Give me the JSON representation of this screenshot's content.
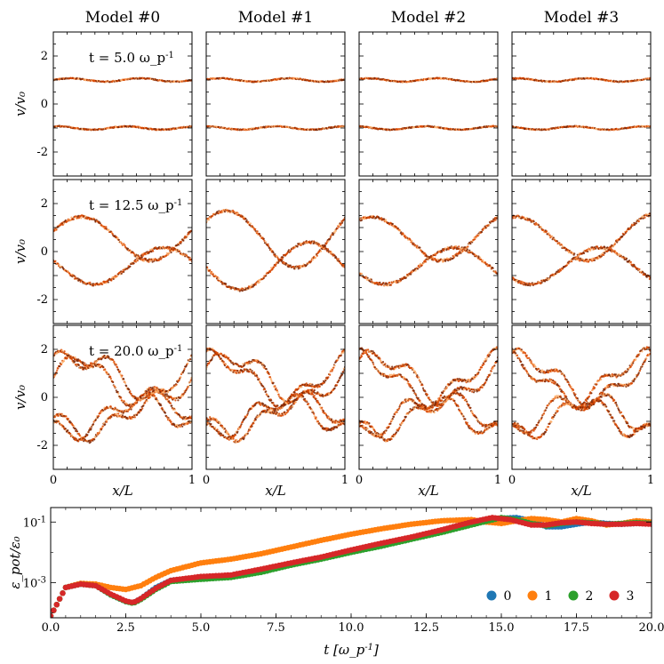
{
  "chart_data": [
    {
      "type": "grid-of-phase-space-plots",
      "columns": [
        "Model #0",
        "Model #1",
        "Model #2",
        "Model #3"
      ],
      "rows": [
        {
          "time_label": "t = 5.0 ω_p^{-1}",
          "t": 5.0
        },
        {
          "time_label": "t = 12.5 ω_p^{-1}",
          "t": 12.5
        },
        {
          "time_label": "t = 20.0 ω_p^{-1}",
          "t": 20.0
        }
      ],
      "xlabel": "x/L",
      "ylabel": "v/v₀",
      "xlim": [
        0,
        1
      ],
      "ylim": [
        -3,
        3
      ],
      "xticks": [
        "0",
        "1"
      ],
      "yticks": [
        "2",
        "0",
        "-2"
      ],
      "colormap": "Oranges",
      "colors": {
        "dark": "#7f2704",
        "mid": "#d94801",
        "light": "#fdae6b"
      }
    },
    {
      "type": "scatter",
      "xlabel": "t [ω_p^{-1}]",
      "ylabel": "ε_pot/ε₀",
      "xlim": [
        0,
        20
      ],
      "xticks": [
        "0.0",
        "2.5",
        "5.0",
        "7.5",
        "10.0",
        "12.5",
        "15.0",
        "17.5",
        "20.0"
      ],
      "yscale": "log",
      "ylim": [
        7e-05,
        0.3
      ],
      "yticks": [
        "10^{-3}",
        "10^{-1}"
      ],
      "legend_placement": "lower-right",
      "legend": [
        "0",
        "1",
        "2",
        "3"
      ],
      "colors": [
        "#1f77b4",
        "#ff7f0e",
        "#2ca02c",
        "#d62728"
      ],
      "series": [
        {
          "name": "0",
          "color": "#1f77b4",
          "t": [
            0,
            0.5,
            1,
            1.5,
            2,
            2.5,
            2.75,
            3,
            3.5,
            4,
            5,
            6,
            7,
            8,
            9,
            10,
            11,
            12,
            13,
            14,
            14.8,
            15.5,
            16,
            16.5,
            17,
            17.5,
            18,
            18.5,
            19,
            19.5,
            20
          ],
          "y": [
            8e-05,
            0.0007,
            0.0009,
            0.0008,
            0.0004,
            0.00024,
            0.00022,
            0.0003,
            0.0007,
            0.0012,
            0.0015,
            0.0017,
            0.0025,
            0.004,
            0.0065,
            0.011,
            0.018,
            0.03,
            0.05,
            0.09,
            0.13,
            0.14,
            0.11,
            0.07,
            0.07,
            0.085,
            0.1,
            0.09,
            0.085,
            0.09,
            0.09
          ]
        },
        {
          "name": "1",
          "color": "#ff7f0e",
          "t": [
            0,
            0.5,
            1,
            1.5,
            2,
            2.5,
            3,
            3.5,
            4,
            5,
            6,
            7,
            8,
            9,
            10,
            11,
            12,
            13,
            14,
            14.5,
            15,
            15.5,
            16,
            16.5,
            17,
            17.5,
            18,
            18.5,
            19,
            19.5,
            20
          ],
          "y": [
            8e-05,
            0.0007,
            0.00095,
            0.0009,
            0.0007,
            0.0006,
            0.0008,
            0.0015,
            0.0025,
            0.0045,
            0.006,
            0.009,
            0.015,
            0.025,
            0.04,
            0.06,
            0.085,
            0.11,
            0.12,
            0.1,
            0.09,
            0.11,
            0.13,
            0.12,
            0.1,
            0.13,
            0.11,
            0.08,
            0.09,
            0.11,
            0.1
          ]
        },
        {
          "name": "2",
          "color": "#2ca02c",
          "t": [
            0,
            0.5,
            1,
            1.5,
            2,
            2.5,
            2.75,
            3,
            3.5,
            4,
            5,
            6,
            7,
            8,
            9,
            10,
            11,
            12,
            13,
            14,
            15,
            15.5,
            16,
            16.5,
            17,
            17.5,
            18,
            18.5,
            19,
            19.5,
            20
          ],
          "y": [
            8e-05,
            0.0007,
            0.0009,
            0.0008,
            0.0004,
            0.00024,
            0.00021,
            0.00028,
            0.0006,
            0.0011,
            0.0013,
            0.0015,
            0.0022,
            0.0038,
            0.006,
            0.01,
            0.016,
            0.027,
            0.045,
            0.08,
            0.14,
            0.12,
            0.09,
            0.075,
            0.09,
            0.1,
            0.095,
            0.085,
            0.09,
            0.095,
            0.09
          ]
        },
        {
          "name": "3",
          "color": "#d62728",
          "t": [
            0,
            0.5,
            1,
            1.5,
            2,
            2.5,
            2.75,
            3,
            3.5,
            4,
            5,
            6,
            7,
            8,
            9,
            10,
            11,
            12,
            13,
            14,
            14.7,
            15.3,
            16,
            16.5,
            17,
            17.5,
            18,
            18.5,
            19,
            19.5,
            20
          ],
          "y": [
            8e-05,
            0.0007,
            0.0009,
            0.0008,
            0.00042,
            0.00025,
            0.00022,
            0.0003,
            0.00065,
            0.0012,
            0.0016,
            0.0018,
            0.0028,
            0.0045,
            0.007,
            0.012,
            0.02,
            0.032,
            0.055,
            0.1,
            0.14,
            0.12,
            0.08,
            0.08,
            0.095,
            0.1,
            0.09,
            0.085,
            0.085,
            0.09,
            0.085
          ]
        }
      ]
    }
  ]
}
